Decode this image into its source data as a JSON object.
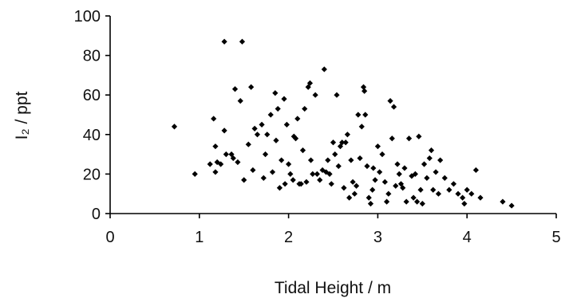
{
  "chart_data": {
    "type": "scatter",
    "title": "",
    "xlabel": "Tidal Height / m",
    "ylabel": "I₂ / ppt",
    "xlim": [
      0,
      5
    ],
    "ylim": [
      0,
      100
    ],
    "xticks": [
      "0",
      "1",
      "2",
      "3",
      "4",
      "5"
    ],
    "yticks": [
      "0",
      "20",
      "40",
      "60",
      "80",
      "100"
    ],
    "grid": false,
    "legend": "none",
    "marker_color": "#000000",
    "series": [
      {
        "points": [
          [
            0.72,
            44
          ],
          [
            0.95,
            20
          ],
          [
            1.12,
            25
          ],
          [
            1.16,
            48
          ],
          [
            1.18,
            34
          ],
          [
            1.18,
            21
          ],
          [
            1.2,
            26
          ],
          [
            1.24,
            25
          ],
          [
            1.28,
            87
          ],
          [
            1.28,
            42
          ],
          [
            1.3,
            30
          ],
          [
            1.36,
            30
          ],
          [
            1.38,
            28
          ],
          [
            1.4,
            63
          ],
          [
            1.43,
            26
          ],
          [
            1.46,
            57
          ],
          [
            1.48,
            87
          ],
          [
            1.5,
            17
          ],
          [
            1.55,
            35
          ],
          [
            1.58,
            64
          ],
          [
            1.6,
            22
          ],
          [
            1.62,
            43
          ],
          [
            1.65,
            40
          ],
          [
            1.7,
            45
          ],
          [
            1.72,
            18
          ],
          [
            1.74,
            30
          ],
          [
            1.76,
            40
          ],
          [
            1.8,
            50
          ],
          [
            1.82,
            21
          ],
          [
            1.85,
            61
          ],
          [
            1.86,
            37
          ],
          [
            1.88,
            53
          ],
          [
            1.9,
            13
          ],
          [
            1.92,
            27
          ],
          [
            1.95,
            58
          ],
          [
            1.96,
            15
          ],
          [
            1.98,
            45
          ],
          [
            2.0,
            25
          ],
          [
            2.02,
            20
          ],
          [
            2.05,
            17
          ],
          [
            2.06,
            39
          ],
          [
            2.08,
            38
          ],
          [
            2.1,
            48
          ],
          [
            2.12,
            15
          ],
          [
            2.14,
            15
          ],
          [
            2.16,
            32
          ],
          [
            2.18,
            53
          ],
          [
            2.2,
            16
          ],
          [
            2.22,
            64
          ],
          [
            2.24,
            66
          ],
          [
            2.25,
            27
          ],
          [
            2.27,
            20
          ],
          [
            2.3,
            60
          ],
          [
            2.32,
            20
          ],
          [
            2.35,
            17
          ],
          [
            2.38,
            22
          ],
          [
            2.4,
            73
          ],
          [
            2.42,
            21
          ],
          [
            2.44,
            27
          ],
          [
            2.46,
            20
          ],
          [
            2.48,
            15
          ],
          [
            2.5,
            36
          ],
          [
            2.52,
            30
          ],
          [
            2.54,
            60
          ],
          [
            2.56,
            24
          ],
          [
            2.58,
            34
          ],
          [
            2.6,
            36
          ],
          [
            2.62,
            13
          ],
          [
            2.64,
            36
          ],
          [
            2.66,
            40
          ],
          [
            2.68,
            8
          ],
          [
            2.7,
            27
          ],
          [
            2.72,
            16
          ],
          [
            2.74,
            10
          ],
          [
            2.76,
            14
          ],
          [
            2.78,
            50
          ],
          [
            2.8,
            28
          ],
          [
            2.82,
            44
          ],
          [
            2.84,
            64
          ],
          [
            2.85,
            62
          ],
          [
            2.86,
            50
          ],
          [
            2.88,
            24
          ],
          [
            2.9,
            8
          ],
          [
            2.92,
            5
          ],
          [
            2.94,
            12
          ],
          [
            2.95,
            23
          ],
          [
            2.97,
            17
          ],
          [
            3.0,
            34
          ],
          [
            3.02,
            21
          ],
          [
            3.05,
            30
          ],
          [
            3.08,
            16
          ],
          [
            3.1,
            6
          ],
          [
            3.12,
            10
          ],
          [
            3.14,
            57
          ],
          [
            3.16,
            38
          ],
          [
            3.18,
            54
          ],
          [
            3.2,
            14
          ],
          [
            3.22,
            25
          ],
          [
            3.24,
            20
          ],
          [
            3.26,
            15
          ],
          [
            3.28,
            13
          ],
          [
            3.3,
            23
          ],
          [
            3.32,
            6
          ],
          [
            3.35,
            38
          ],
          [
            3.38,
            19
          ],
          [
            3.4,
            8
          ],
          [
            3.42,
            20
          ],
          [
            3.44,
            6
          ],
          [
            3.46,
            39
          ],
          [
            3.48,
            12
          ],
          [
            3.5,
            5
          ],
          [
            3.52,
            25
          ],
          [
            3.55,
            18
          ],
          [
            3.58,
            28
          ],
          [
            3.6,
            32
          ],
          [
            3.62,
            12
          ],
          [
            3.65,
            21
          ],
          [
            3.68,
            10
          ],
          [
            3.7,
            27
          ],
          [
            3.75,
            18
          ],
          [
            3.8,
            12
          ],
          [
            3.85,
            15
          ],
          [
            3.9,
            10
          ],
          [
            3.95,
            8
          ],
          [
            3.97,
            5
          ],
          [
            4.0,
            12
          ],
          [
            4.05,
            10
          ],
          [
            4.1,
            22
          ],
          [
            4.15,
            8
          ],
          [
            4.4,
            6
          ],
          [
            4.5,
            4
          ]
        ]
      }
    ]
  }
}
